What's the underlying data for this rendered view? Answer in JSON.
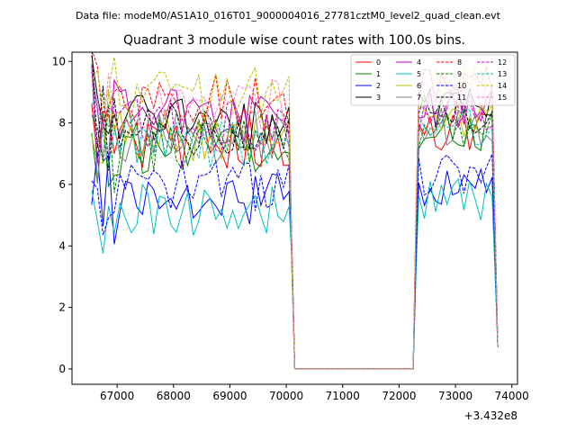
{
  "chart_data": {
    "type": "line",
    "suptitle": "Data file: modeM0/AS1A10_016T01_9000004016_27781cztM0_level2_quad_clean.evt",
    "title": "Quadrant 3 module wise count rates with 100.0s bins.",
    "xlabel": "",
    "ylabel": "",
    "x_offset_label": "+3.432e8",
    "xlim": [
      66200,
      74100
    ],
    "ylim": [
      -0.5,
      10.3
    ],
    "xticks": [
      67000,
      68000,
      69000,
      70000,
      71000,
      72000,
      73000,
      74000
    ],
    "yticks": [
      0,
      2,
      4,
      6,
      8,
      10
    ],
    "grid": false,
    "legend": {
      "position": "top-right",
      "columns": 4
    },
    "segments": {
      "first": {
        "x_start": 66550,
        "x_end": 70150,
        "step": 100
      },
      "gap": {
        "x_start": 70150,
        "x_end": 72250,
        "step": 100,
        "value": 0
      },
      "second": {
        "x_start": 72250,
        "x_end": 73750,
        "step": 100
      }
    },
    "series": [
      {
        "name": "0",
        "color": "#ff0000",
        "dash": false,
        "level": 7.4
      },
      {
        "name": "1",
        "color": "#008000",
        "dash": false,
        "level": 7.2
      },
      {
        "name": "2",
        "color": "#0000ff",
        "dash": false,
        "level": 5.6
      },
      {
        "name": "3",
        "color": "#000000",
        "dash": false,
        "level": 8.0
      },
      {
        "name": "4",
        "color": "#bf00bf",
        "dash": false,
        "level": 8.2
      },
      {
        "name": "5",
        "color": "#00bfbf",
        "dash": false,
        "level": 5.1
      },
      {
        "name": "6",
        "color": "#bfbf00",
        "dash": false,
        "level": 7.6
      },
      {
        "name": "7",
        "color": "#808080",
        "dash": false,
        "level": 7.5
      },
      {
        "name": "8",
        "color": "#ff0000",
        "dash": true,
        "level": 8.7
      },
      {
        "name": "9",
        "color": "#008000",
        "dash": true,
        "level": 7.3
      },
      {
        "name": "10",
        "color": "#0000ff",
        "dash": true,
        "level": 5.9
      },
      {
        "name": "11",
        "color": "#000000",
        "dash": true,
        "level": 7.8
      },
      {
        "name": "12",
        "color": "#bf00bf",
        "dash": true,
        "level": 7.9
      },
      {
        "name": "13",
        "color": "#00bfbf",
        "dash": true,
        "level": 7.4
      },
      {
        "name": "14",
        "color": "#bfbf00",
        "dash": true,
        "level": 8.9
      },
      {
        "name": "15",
        "color": "#ff80c0",
        "dash": true,
        "level": 8.5
      }
    ]
  }
}
